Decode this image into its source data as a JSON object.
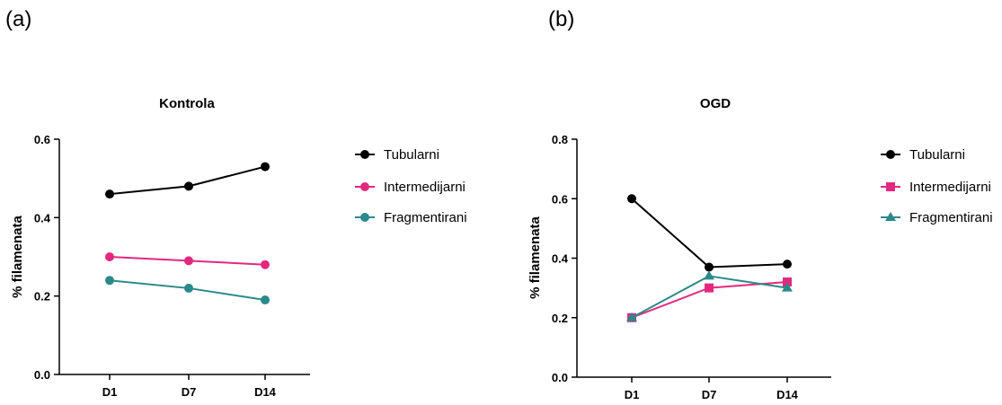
{
  "panels": {
    "a_label": "(a)",
    "b_label": "(b)"
  },
  "chart_data": [
    {
      "type": "line",
      "title": "Kontrola",
      "xlabel": "",
      "ylabel": "% filamenata",
      "categories": [
        "D1",
        "D7",
        "D14"
      ],
      "ylim": [
        0,
        0.6
      ],
      "yticks": [
        "0.0",
        "0.2",
        "0.4",
        "0.6"
      ],
      "yticks_values": [
        0,
        0.2,
        0.4,
        0.6
      ],
      "legend_position": "right",
      "series": [
        {
          "name": "Tubularni",
          "values": [
            0.46,
            0.48,
            0.53
          ],
          "color": "#000000",
          "marker": "circle"
        },
        {
          "name": "Intermedijarni",
          "values": [
            0.3,
            0.29,
            0.28
          ],
          "color": "#e3297f",
          "marker": "circle"
        },
        {
          "name": "Fragmentirani",
          "values": [
            0.24,
            0.22,
            0.19
          ],
          "color": "#2a8a8a",
          "marker": "circle"
        }
      ]
    },
    {
      "type": "line",
      "title": "OGD",
      "xlabel": "",
      "ylabel": "% filamenata",
      "categories": [
        "D1",
        "D7",
        "D14"
      ],
      "ylim": [
        0,
        0.8
      ],
      "yticks": [
        "0.0",
        "0.2",
        "0.4",
        "0.6",
        "0.8"
      ],
      "yticks_values": [
        0,
        0.2,
        0.4,
        0.6,
        0.8
      ],
      "legend_position": "right",
      "series": [
        {
          "name": "Tubularni",
          "values": [
            0.6,
            0.37,
            0.38
          ],
          "color": "#000000",
          "marker": "circle"
        },
        {
          "name": "Intermedijarni",
          "values": [
            0.2,
            0.3,
            0.32
          ],
          "color": "#e3297f",
          "marker": "square"
        },
        {
          "name": "Fragmentirani",
          "values": [
            0.2,
            0.34,
            0.3
          ],
          "color": "#2a8a8a",
          "marker": "triangle"
        }
      ]
    }
  ]
}
